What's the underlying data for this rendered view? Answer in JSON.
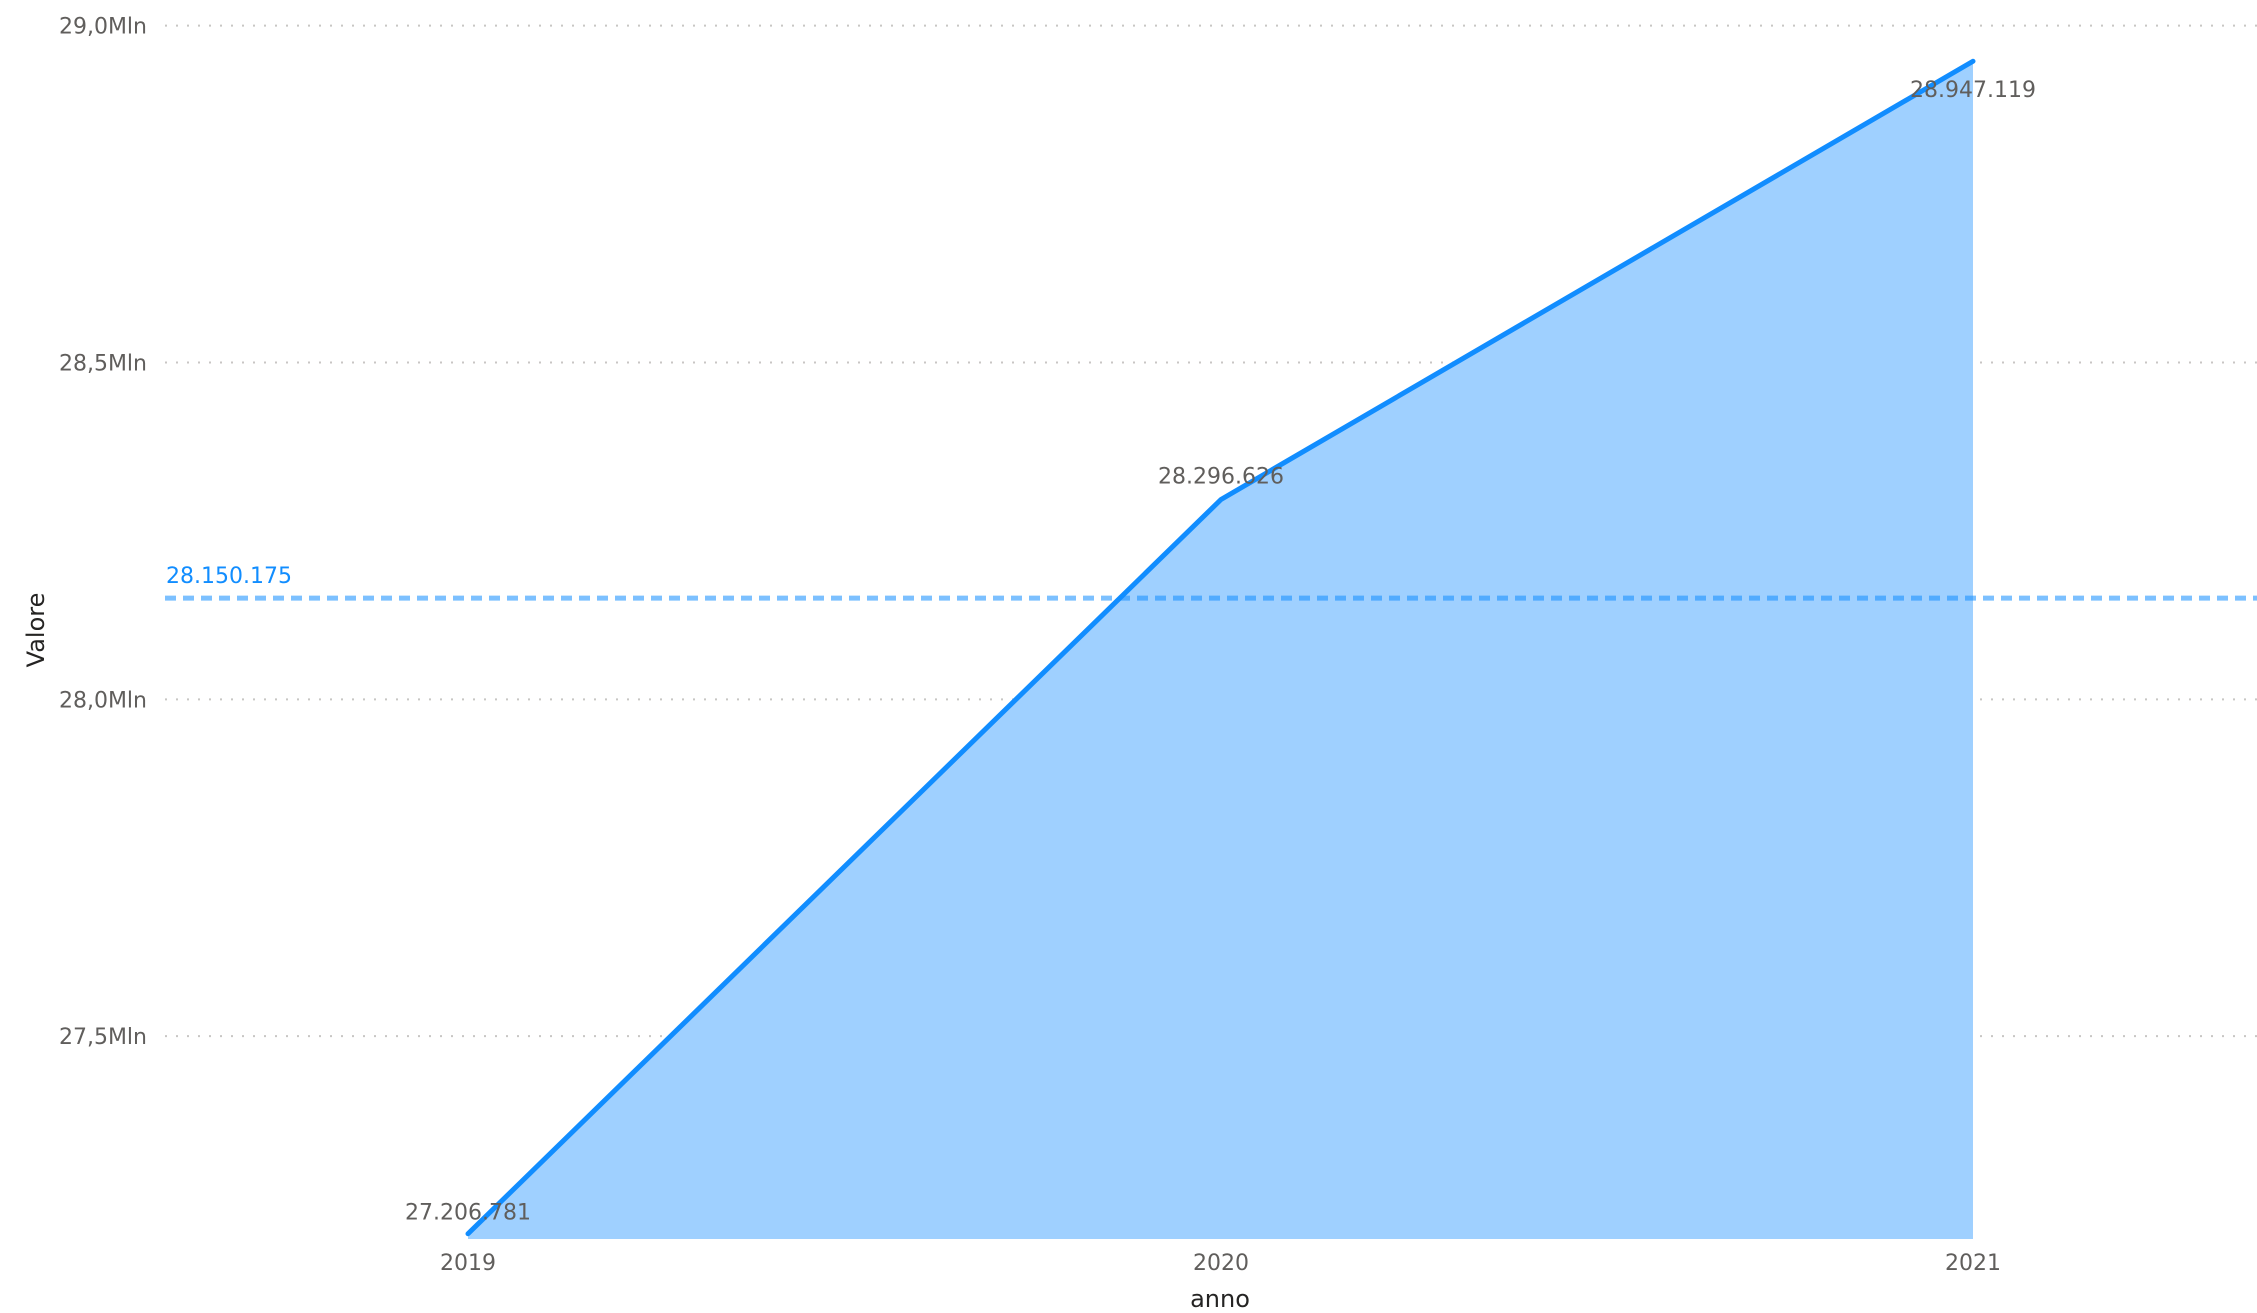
{
  "chart_data": {
    "type": "area",
    "xlabel": "anno",
    "ylabel": "Valore",
    "categories": [
      "2019",
      "2020",
      "2021"
    ],
    "series": [
      {
        "values": [
          27206781,
          28296626,
          28947119
        ],
        "data_labels": [
          "27.206.781",
          "28.296.626",
          "28.947.119"
        ]
      }
    ],
    "y_ticks": [
      {
        "value": 29000000,
        "label": "29,0Mln"
      },
      {
        "value": 28500000,
        "label": "28,5Mln"
      },
      {
        "value": 28000000,
        "label": "28,0Mln"
      },
      {
        "value": 27500000,
        "label": "27,5Mln"
      }
    ],
    "ylim": [
      27200000,
      29030000
    ],
    "grid": true,
    "reference_line": {
      "value": 28150175,
      "label": "28.150.175",
      "style": "dashed"
    },
    "colors": {
      "line": "#118DFF",
      "area": "#9FD0FF",
      "reference": "#118DFF",
      "grid": "#C8C6C4",
      "tick_text": "#605E5C",
      "axis_title": "#252423"
    }
  }
}
